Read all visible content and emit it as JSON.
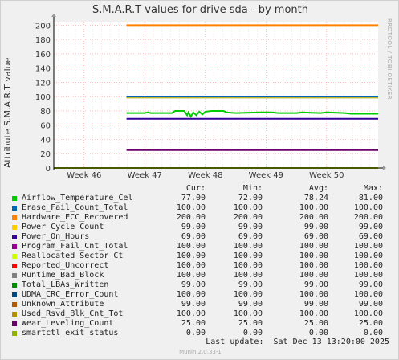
{
  "chart_data": {
    "type": "line",
    "title": "S.M.A.R.T values for drive sda - by month",
    "ylabel": "Attribute S.M.A.R.T value",
    "ylim": [
      0,
      205
    ],
    "y_ticks": [
      "0",
      "20",
      "40",
      "60",
      "80",
      "100",
      "120",
      "140",
      "160",
      "180",
      "200"
    ],
    "y_tick_values": [
      0,
      20,
      40,
      60,
      80,
      100,
      120,
      140,
      160,
      180,
      200
    ],
    "x_ticks": [
      "Week 46",
      "Week 47",
      "Week 48",
      "Week 49",
      "Week 50"
    ],
    "x_tick_values": [
      46,
      47,
      48,
      49,
      50
    ],
    "xlim": [
      45.5,
      50.85
    ],
    "data_start": 46.7,
    "grid": true,
    "series": [
      {
        "name": "Airflow_Temperature_Cel",
        "color": "#00cc00",
        "values": [
          [
            46.7,
            77
          ],
          [
            47.0,
            77
          ],
          [
            47.05,
            78
          ],
          [
            47.1,
            77
          ],
          [
            47.45,
            77
          ],
          [
            47.5,
            80
          ],
          [
            47.65,
            80
          ],
          [
            47.7,
            74
          ],
          [
            47.72,
            78
          ],
          [
            47.76,
            72
          ],
          [
            47.8,
            78
          ],
          [
            47.85,
            74
          ],
          [
            47.9,
            79
          ],
          [
            47.95,
            75
          ],
          [
            48.0,
            79
          ],
          [
            48.1,
            80
          ],
          [
            48.3,
            80
          ],
          [
            48.35,
            78
          ],
          [
            48.5,
            77
          ],
          [
            48.9,
            78
          ],
          [
            49.1,
            78
          ],
          [
            49.2,
            77
          ],
          [
            49.5,
            77
          ],
          [
            49.6,
            78
          ],
          [
            49.9,
            77
          ],
          [
            50.0,
            78
          ],
          [
            50.3,
            77
          ],
          [
            50.4,
            76
          ],
          [
            50.85,
            76
          ]
        ]
      },
      {
        "name": "Erase_Fail_Count_Total",
        "color": "#0066b3",
        "values": [
          [
            46.7,
            100
          ],
          [
            50.85,
            100
          ]
        ]
      },
      {
        "name": "Hardware_ECC_Recovered",
        "color": "#ff8000",
        "values": [
          [
            46.7,
            200
          ],
          [
            50.85,
            200
          ]
        ]
      },
      {
        "name": "Power_Cycle_Count",
        "color": "#ffcc00",
        "values": [
          [
            46.7,
            99
          ],
          [
            50.85,
            99
          ]
        ]
      },
      {
        "name": "Power_On_Hours",
        "color": "#330099",
        "values": [
          [
            46.7,
            69
          ],
          [
            50.85,
            69
          ]
        ]
      },
      {
        "name": "Program_Fail_Cnt_Total",
        "color": "#990099",
        "values": [
          [
            46.7,
            100
          ],
          [
            50.85,
            100
          ]
        ]
      },
      {
        "name": "Reallocated_Sector_Ct",
        "color": "#ccff00",
        "values": [
          [
            46.7,
            100
          ],
          [
            50.85,
            100
          ]
        ]
      },
      {
        "name": "Reported_Uncorrect",
        "color": "#ff0000",
        "values": [
          [
            46.7,
            100
          ],
          [
            50.85,
            100
          ]
        ]
      },
      {
        "name": "Runtime_Bad_Block",
        "color": "#808080",
        "values": [
          [
            46.7,
            100
          ],
          [
            50.85,
            100
          ]
        ]
      },
      {
        "name": "Total_LBAs_Written",
        "color": "#008f00",
        "values": [
          [
            46.7,
            99
          ],
          [
            50.85,
            99
          ]
        ]
      },
      {
        "name": "UDMA_CRC_Error_Count",
        "color": "#00487d",
        "values": [
          [
            46.7,
            100
          ],
          [
            50.85,
            100
          ]
        ]
      },
      {
        "name": "Unknown_Attribute",
        "color": "#b35a00",
        "values": [
          [
            46.7,
            99
          ],
          [
            50.85,
            99
          ]
        ]
      },
      {
        "name": "Used_Rsvd_Blk_Cnt_Tot",
        "color": "#b38f00",
        "values": [
          [
            46.7,
            100
          ],
          [
            50.85,
            100
          ]
        ]
      },
      {
        "name": "Wear_Leveling_Count",
        "color": "#6b006b",
        "values": [
          [
            46.7,
            25
          ],
          [
            50.85,
            25
          ]
        ]
      },
      {
        "name": "smartctl_exit_status",
        "color": "#8fb300",
        "values": [
          [
            45.5,
            0
          ],
          [
            50.85,
            0
          ]
        ]
      }
    ]
  },
  "legend": {
    "headers": {
      "cur": "Cur:",
      "min": "Min:",
      "avg": "Avg:",
      "max": "Max:"
    },
    "rows": [
      {
        "name": "Airflow_Temperature_Cel",
        "cur": "77.00",
        "min": "72.00",
        "avg": "78.24",
        "max": "81.00"
      },
      {
        "name": "Erase_Fail_Count_Total",
        "cur": "100.00",
        "min": "100.00",
        "avg": "100.00",
        "max": "100.00"
      },
      {
        "name": "Hardware_ECC_Recovered",
        "cur": "200.00",
        "min": "200.00",
        "avg": "200.00",
        "max": "200.00"
      },
      {
        "name": "Power_Cycle_Count",
        "cur": "99.00",
        "min": "99.00",
        "avg": "99.00",
        "max": "99.00"
      },
      {
        "name": "Power_On_Hours",
        "cur": "69.00",
        "min": "69.00",
        "avg": "69.00",
        "max": "69.00"
      },
      {
        "name": "Program_Fail_Cnt_Total",
        "cur": "100.00",
        "min": "100.00",
        "avg": "100.00",
        "max": "100.00"
      },
      {
        "name": "Reallocated_Sector_Ct",
        "cur": "100.00",
        "min": "100.00",
        "avg": "100.00",
        "max": "100.00"
      },
      {
        "name": "Reported_Uncorrect",
        "cur": "100.00",
        "min": "100.00",
        "avg": "100.00",
        "max": "100.00"
      },
      {
        "name": "Runtime_Bad_Block",
        "cur": "100.00",
        "min": "100.00",
        "avg": "100.00",
        "max": "100.00"
      },
      {
        "name": "Total_LBAs_Written",
        "cur": "99.00",
        "min": "99.00",
        "avg": "99.00",
        "max": "99.00"
      },
      {
        "name": "UDMA_CRC_Error_Count",
        "cur": "100.00",
        "min": "100.00",
        "avg": "100.00",
        "max": "100.00"
      },
      {
        "name": "Unknown_Attribute",
        "cur": "99.00",
        "min": "99.00",
        "avg": "99.00",
        "max": "99.00"
      },
      {
        "name": "Used_Rsvd_Blk_Cnt_Tot",
        "cur": "100.00",
        "min": "100.00",
        "avg": "100.00",
        "max": "100.00"
      },
      {
        "name": "Wear_Leveling_Count",
        "cur": "25.00",
        "min": "25.00",
        "avg": "25.00",
        "max": "25.00"
      },
      {
        "name": "smartctl_exit_status",
        "cur": "0.00",
        "min": "0.00",
        "avg": "0.00",
        "max": "0.00"
      }
    ]
  },
  "footer": {
    "last_update": "Last update:  Sat Dec 13 13:20:00 2025",
    "munin_version": "Munin 2.0.33-1"
  },
  "watermark": "RRDTOOL / TOBI OETIKER",
  "colors": {
    "background": "#f0f0f0",
    "plot_background": "#ffffff",
    "grid": "#ff9999",
    "axis": "#000000"
  }
}
